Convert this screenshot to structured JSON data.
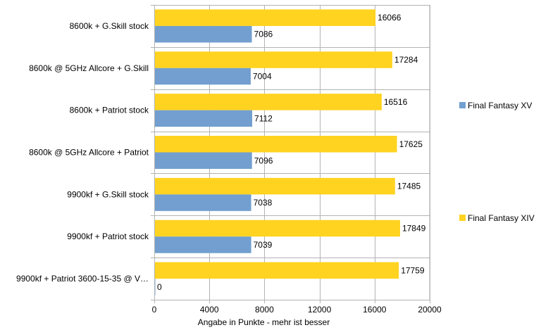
{
  "chart_data": {
    "type": "bar",
    "orientation": "horizontal",
    "title": "",
    "xlabel": "Angabe in Punkte - mehr ist besser",
    "ylabel": "",
    "xlim": [
      0,
      20000
    ],
    "ticks": [
      "0",
      "4000",
      "8000",
      "12000",
      "16000",
      "20000"
    ],
    "tick_values": [
      0,
      4000,
      8000,
      12000,
      16000,
      20000
    ],
    "grid": true,
    "legend_position": "right",
    "categories": [
      "8600k + G.Skill stock",
      "8600k @ 5GHz Allcore + G.Skill",
      "8600k + Patriot stock",
      "8600k @ 5GHz Allcore + Patriot",
      "9900kf + G.Skill stock",
      "9900kf + Patriot stock",
      "9900kf + Patriot 3600-15-35 @ V…"
    ],
    "series": [
      {
        "name": "Final Fantasy XV",
        "color": "#729fcf",
        "values": [
          7086,
          7004,
          7112,
          7096,
          7038,
          7039,
          0
        ]
      },
      {
        "name": "Final Fantasy XIV",
        "color": "#ffd320",
        "values": [
          16066,
          17284,
          16516,
          17625,
          17485,
          17849,
          17759
        ]
      }
    ]
  }
}
